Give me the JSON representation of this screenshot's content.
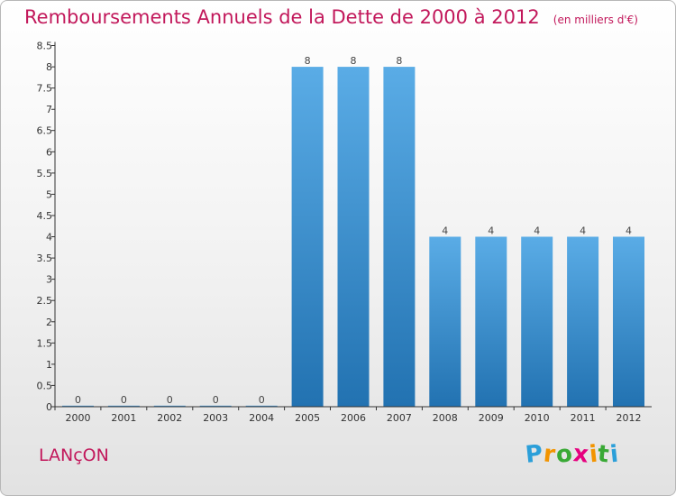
{
  "title": "Remboursements Annuels de la Dette de 2000 à 2012",
  "subtitle": "(en milliers d'€)",
  "commune": "LANçON",
  "logo": {
    "letters": [
      "P",
      "r",
      "o",
      "x",
      "i",
      "t",
      "i"
    ],
    "colors": [
      "#2b9fd9",
      "#f29400",
      "#39a935",
      "#e6007e",
      "#f29400",
      "#39a935",
      "#2b9fd9"
    ]
  },
  "colors": {
    "title": "#c2185b",
    "bar_light": "#5aace6",
    "bar_dark": "#2272b1",
    "axis": "#333333"
  },
  "chart_data": {
    "type": "bar",
    "categories": [
      "2000",
      "2001",
      "2002",
      "2003",
      "2004",
      "2005",
      "2006",
      "2007",
      "2008",
      "2009",
      "2010",
      "2011",
      "2012"
    ],
    "values": [
      0,
      0,
      0,
      0,
      0,
      8,
      8,
      8,
      4,
      4,
      4,
      4,
      4
    ],
    "value_labels": [
      "0",
      "0",
      "0",
      "0",
      "0",
      "8",
      "8",
      "8",
      "4",
      "4",
      "4",
      "4",
      "4"
    ],
    "y_ticks": [
      "0",
      "0.5",
      "1",
      "1.5",
      "2",
      "2.5",
      "3",
      "3.5",
      "4",
      "4.5",
      "5",
      "5.5",
      "6",
      "6.5",
      "7",
      "7.5",
      "8",
      "8.5"
    ],
    "ylim": [
      0,
      8.5
    ],
    "grid": false,
    "xlabel": "",
    "ylabel": ""
  }
}
